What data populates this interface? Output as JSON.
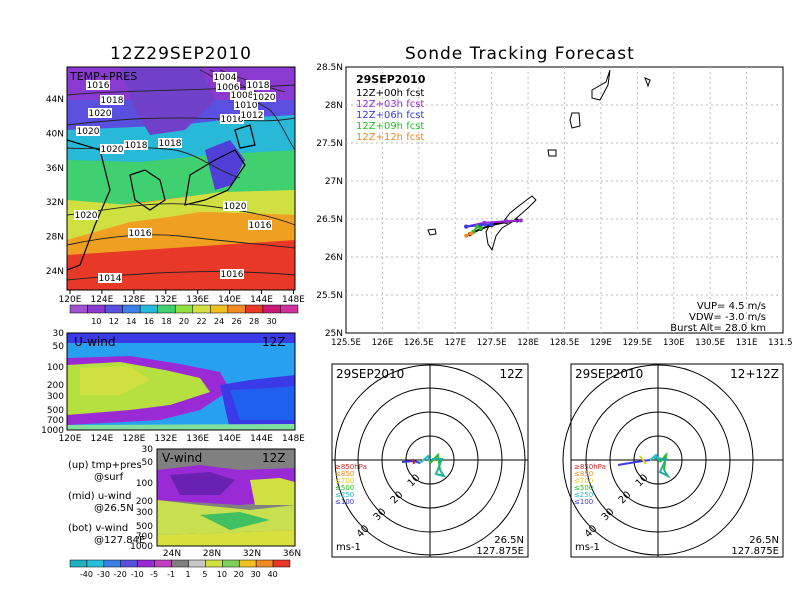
{
  "left_title": "12Z29SEP2010",
  "right_title": "Sonde Tracking Forecast",
  "map_panel": {
    "label": "TEMP+PRES",
    "lon_ticks": [
      "120E",
      "124E",
      "128E",
      "132E",
      "136E",
      "140E",
      "144E",
      "148E"
    ],
    "lat_ticks": [
      "44N",
      "40N",
      "36N",
      "32N",
      "28N",
      "24N"
    ],
    "isobar_labels": [
      "1016",
      "1018",
      "1020",
      "1020",
      "1020",
      "1020",
      "1018",
      "1018",
      "1016",
      "1020",
      "1016",
      "1014",
      "1016",
      "1004",
      "1006",
      "1008",
      "1010",
      "1012",
      "1016",
      "1018",
      "1020"
    ],
    "colorbar_labels": [
      "10",
      "12",
      "14",
      "16",
      "18",
      "20",
      "22",
      "24",
      "26",
      "28",
      "30"
    ]
  },
  "u_panel": {
    "label": "U-wind",
    "time": "12Z",
    "p_ticks": [
      "30",
      "50",
      "100",
      "200",
      "300",
      "500",
      "700",
      "1000"
    ],
    "lon_ticks": [
      "120E",
      "124E",
      "128E",
      "132E",
      "136E",
      "140E",
      "144E",
      "148E"
    ]
  },
  "v_panel": {
    "label": "V-wind",
    "time": "12Z",
    "p_ticks": [
      "30",
      "50",
      "100",
      "200",
      "300",
      "500",
      "700",
      "1000"
    ],
    "lat_ticks": [
      "24N",
      "28N",
      "32N",
      "36N"
    ],
    "colorbar_labels": [
      "-40",
      "-30",
      "-20",
      "-10",
      "-5",
      "-1",
      "1",
      "5",
      "10",
      "20",
      "30",
      "40"
    ]
  },
  "legend_notes": [
    "(up) tmp+pres",
    "@surf",
    "(mid) u-wind",
    "@26.5N",
    "(bot) v-wind",
    "@127.84E"
  ],
  "track_panel": {
    "date": "29SEP2010",
    "forecast_legend": [
      {
        "label": "12Z+00h fcst",
        "color": "#000000"
      },
      {
        "label": "12Z+03h fcst",
        "color": "#9a2ad6"
      },
      {
        "label": "12Z+06h fcst",
        "color": "#3a3ae8"
      },
      {
        "label": "12Z+09h fcst",
        "color": "#22c022"
      },
      {
        "label": "12Z+12h fcst",
        "color": "#f08a24"
      }
    ],
    "lat_ticks": [
      "28.5N",
      "28N",
      "27.5N",
      "27N",
      "26.5N",
      "26N",
      "25.5N",
      "25N"
    ],
    "lon_ticks": [
      "125.5E",
      "126E",
      "126.5E",
      "127E",
      "127.5E",
      "128E",
      "128.5E",
      "129E",
      "129.5E",
      "130E",
      "130.5E",
      "131E",
      "131.5E"
    ],
    "vup": "VUP= 4.5 m/s",
    "vdw": "VDW= -3.0 m/s",
    "burst": "Burst Alt= 28.0 km"
  },
  "hodo_left": {
    "date": "29SEP2010",
    "time": "12Z",
    "ring_labels": [
      "10",
      "20",
      "30",
      "40"
    ],
    "level_legend": [
      {
        "label": "≥850hPa",
        "color": "#d42020"
      },
      {
        "label": "≤850",
        "color": "#f08a24"
      },
      {
        "label": "≤700",
        "color": "#e0d020"
      },
      {
        "label": "≤500",
        "color": "#22c022"
      },
      {
        "label": "≤250",
        "color": "#20c0d0"
      },
      {
        "label": "≤100",
        "color": "#3a3ae8"
      }
    ],
    "unit": "ms-1",
    "lat": "26.5N",
    "lon": "127.875E"
  },
  "hodo_right": {
    "date": "29SEP2010",
    "time": "12+12Z",
    "ring_labels": [
      "10",
      "20",
      "30",
      "40"
    ],
    "unit": "ms-1",
    "lat": "26.5N",
    "lon": "127.875E"
  },
  "chart_data": {
    "type": "line",
    "title": "Sonde Tracking Forecast",
    "xlim": [
      125.5,
      131.5
    ],
    "ylim": [
      25,
      28.5
    ],
    "series": [
      {
        "name": "12Z+00h fcst",
        "x": [
          127.2,
          127.35,
          127.5,
          127.7,
          127.85
        ],
        "y": [
          26.3,
          26.37,
          26.42,
          26.46,
          26.48
        ]
      },
      {
        "name": "12Z+03h fcst",
        "x": [
          127.15,
          127.4,
          127.7,
          127.9
        ],
        "y": [
          26.4,
          26.45,
          26.47,
          26.48
        ]
      },
      {
        "name": "12Z+06h fcst",
        "x": [
          127.15,
          127.35,
          127.5
        ],
        "y": [
          26.4,
          26.42,
          26.43
        ]
      },
      {
        "name": "12Z+09h fcst",
        "x": [
          127.25,
          127.3,
          127.35
        ],
        "y": [
          26.33,
          26.4,
          26.38
        ]
      },
      {
        "name": "12Z+12h fcst",
        "x": [
          127.15,
          127.22
        ],
        "y": [
          26.28,
          26.31
        ]
      }
    ]
  }
}
